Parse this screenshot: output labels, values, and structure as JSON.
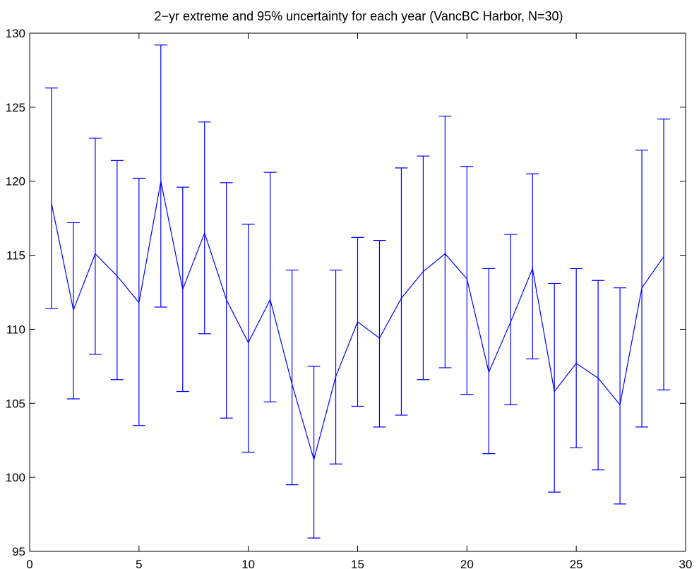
{
  "chart_data": {
    "type": "line",
    "title": "2−yr extreme and 95% uncertainty for each year (VancBC Harbor, N=30)",
    "xlabel": "",
    "ylabel": "",
    "xlim": [
      0,
      30
    ],
    "ylim": [
      95,
      130
    ],
    "xticks": [
      0,
      5,
      10,
      15,
      20,
      25,
      30
    ],
    "yticks": [
      95,
      100,
      105,
      110,
      115,
      120,
      125,
      130
    ],
    "xtick_labels": [
      "0",
      "5",
      "10",
      "15",
      "20",
      "25",
      "30"
    ],
    "ytick_labels": [
      "95",
      "100",
      "105",
      "110",
      "115",
      "120",
      "125",
      "130"
    ],
    "grid": false,
    "legend": "none",
    "series": [
      {
        "color": "#0000ff",
        "x": [
          1,
          2,
          3,
          4,
          5,
          6,
          7,
          8,
          9,
          10,
          11,
          12,
          13,
          14,
          15,
          16,
          17,
          18,
          19,
          20,
          21,
          22,
          23,
          24,
          25,
          26,
          27,
          28,
          29
        ],
        "y": [
          118.5,
          111.3,
          115.1,
          113.6,
          111.8,
          120.0,
          112.7,
          116.5,
          112.0,
          109.1,
          112.0,
          106.3,
          101.2,
          106.8,
          110.5,
          109.4,
          112.1,
          113.9,
          115.1,
          113.4,
          107.1,
          110.5,
          114.1,
          105.8,
          107.7,
          106.7,
          104.9,
          112.8,
          114.9
        ],
        "lower": [
          111.4,
          105.3,
          108.3,
          106.6,
          103.5,
          111.5,
          105.8,
          109.7,
          104.0,
          101.7,
          105.1,
          99.5,
          95.9,
          100.9,
          104.8,
          103.4,
          104.2,
          106.6,
          107.4,
          105.6,
          101.6,
          104.9,
          108.0,
          99.0,
          102.0,
          100.5,
          98.2,
          103.4,
          105.9
        ],
        "upper": [
          126.3,
          117.2,
          122.9,
          121.4,
          120.2,
          129.2,
          119.6,
          124.0,
          119.9,
          117.1,
          120.6,
          114.0,
          107.5,
          114.0,
          116.2,
          116.0,
          120.9,
          121.7,
          124.4,
          121.0,
          114.1,
          116.4,
          120.5,
          113.1,
          114.1,
          113.3,
          112.8,
          122.1,
          124.2
        ]
      }
    ]
  }
}
